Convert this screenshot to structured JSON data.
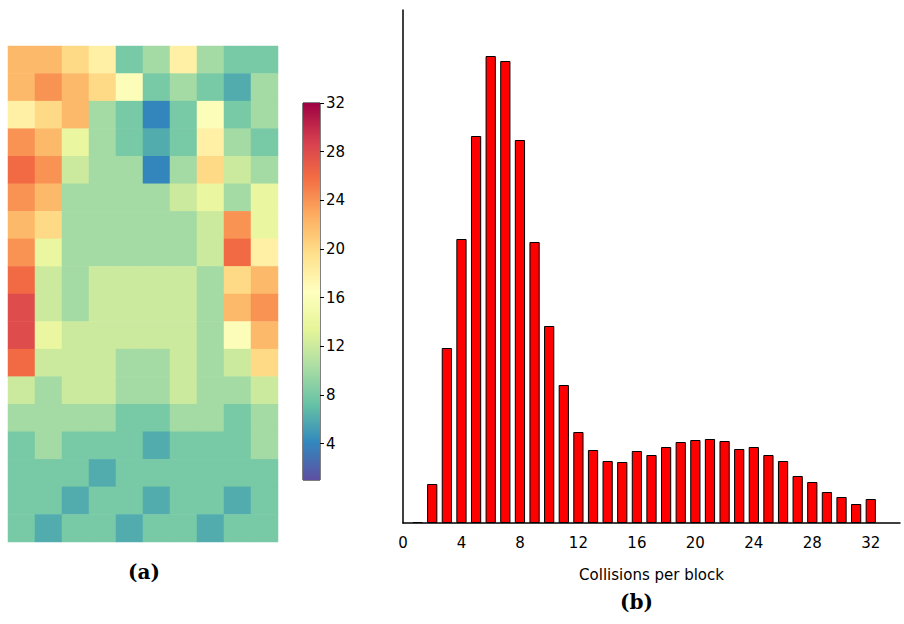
{
  "chart_data": [
    {
      "type": "heatmap",
      "label": "(a)",
      "tick_labels": false,
      "cells": [
        [
          22,
          22,
          20,
          18,
          8,
          10,
          18,
          10,
          8,
          8
        ],
        [
          22,
          24,
          22,
          20,
          16,
          8,
          10,
          8,
          6,
          10
        ],
        [
          18,
          20,
          22,
          10,
          8,
          4,
          8,
          16,
          8,
          10
        ],
        [
          24,
          22,
          14,
          10,
          8,
          6,
          8,
          18,
          10,
          8
        ],
        [
          26,
          24,
          12,
          10,
          10,
          4,
          10,
          20,
          12,
          10
        ],
        [
          24,
          22,
          10,
          10,
          10,
          10,
          12,
          14,
          10,
          14
        ],
        [
          22,
          20,
          10,
          10,
          10,
          10,
          10,
          12,
          24,
          14
        ],
        [
          24,
          14,
          10,
          10,
          10,
          10,
          10,
          12,
          26,
          18
        ],
        [
          26,
          12,
          10,
          12,
          12,
          12,
          12,
          10,
          20,
          22
        ],
        [
          28,
          12,
          10,
          12,
          12,
          12,
          12,
          10,
          22,
          24
        ],
        [
          28,
          14,
          12,
          12,
          12,
          12,
          12,
          10,
          16,
          22
        ],
        [
          26,
          12,
          12,
          12,
          10,
          10,
          12,
          10,
          12,
          20
        ],
        [
          12,
          10,
          12,
          12,
          10,
          10,
          12,
          10,
          10,
          12
        ],
        [
          10,
          10,
          10,
          10,
          8,
          8,
          10,
          10,
          8,
          10
        ],
        [
          8,
          10,
          8,
          8,
          8,
          6,
          8,
          8,
          8,
          10
        ],
        [
          8,
          8,
          8,
          6,
          8,
          8,
          8,
          8,
          8,
          8
        ],
        [
          8,
          8,
          6,
          8,
          8,
          6,
          8,
          8,
          6,
          8
        ],
        [
          8,
          6,
          8,
          8,
          6,
          8,
          8,
          6,
          8,
          8
        ]
      ],
      "colorbar_range": [
        1,
        32
      ],
      "colorbar_ticks": [
        4,
        8,
        12,
        16,
        20,
        24,
        28,
        32
      ]
    },
    {
      "type": "bar",
      "label": "(b)",
      "xlabel": "Collisions per block",
      "color": "#ff0000",
      "x": [
        1,
        2,
        3,
        4,
        5,
        6,
        7,
        8,
        9,
        10,
        11,
        12,
        13,
        14,
        15,
        16,
        17,
        18,
        19,
        20,
        21,
        22,
        23,
        24,
        25,
        26,
        27,
        28,
        29,
        30,
        31,
        32
      ],
      "values": [
        1,
        39,
        175,
        284,
        387,
        467,
        462,
        383,
        281,
        197,
        138,
        91,
        73,
        62,
        61,
        72,
        68,
        76,
        81,
        83,
        84,
        82,
        74,
        76,
        68,
        62,
        47,
        41,
        31,
        26,
        19,
        24
      ],
      "xlim": [
        0,
        34
      ],
      "xticks": [
        0,
        4,
        8,
        12,
        16,
        20,
        24,
        28,
        32
      ],
      "ylim": [
        0,
        513
      ],
      "tick_labels": "x"
    }
  ]
}
